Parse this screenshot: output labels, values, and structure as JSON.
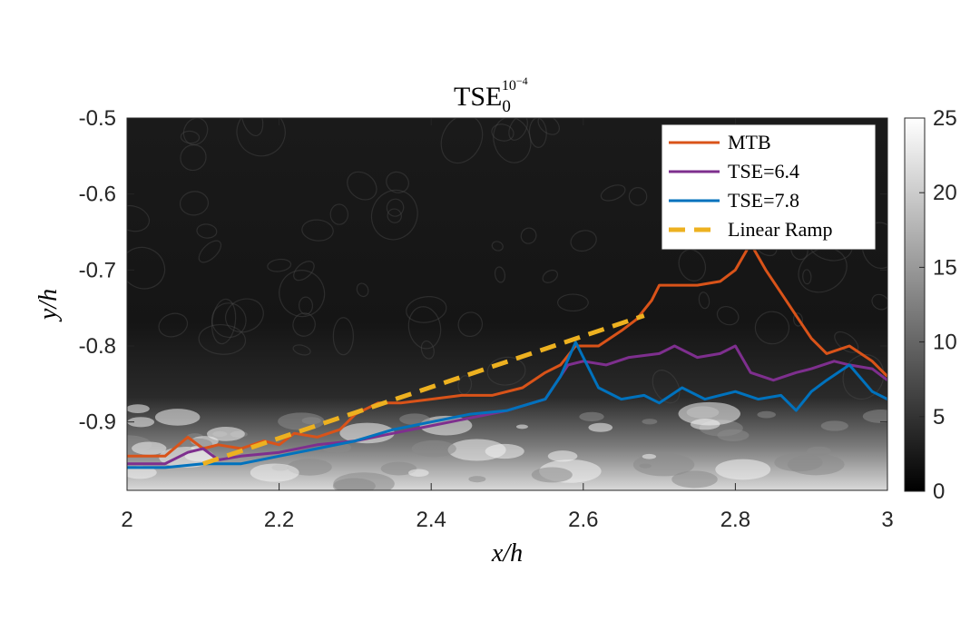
{
  "chart_data": {
    "type": "line",
    "title": "TSE",
    "title_sub": "0",
    "title_sup": "10",
    "title_sup_exp": "−4",
    "xlabel": "x/h",
    "ylabel": "y/h",
    "xlim": [
      2,
      3
    ],
    "ylim": [
      -0.99,
      -0.5
    ],
    "x_ticks": [
      2,
      2.2,
      2.4,
      2.6,
      2.8,
      3
    ],
    "x_tick_labels": [
      "2",
      "2.2",
      "2.4",
      "2.6",
      "2.8",
      "3"
    ],
    "y_ticks": [
      -0.5,
      -0.6,
      -0.7,
      -0.8,
      -0.9
    ],
    "y_tick_labels": [
      "-0.5",
      "-0.6",
      "-0.7",
      "-0.8",
      "-0.9"
    ],
    "colorbar": {
      "range": [
        0,
        25
      ],
      "ticks": [
        0,
        5,
        10,
        15,
        20,
        25
      ],
      "tick_labels": [
        "0",
        "5",
        "10",
        "15",
        "20",
        "25"
      ],
      "colormap": "gray"
    },
    "legend_position": "top-right",
    "grid": false,
    "series": [
      {
        "name": "MTB",
        "color": "#d95319",
        "dash": false,
        "x": [
          2.0,
          2.05,
          2.08,
          2.1,
          2.12,
          2.15,
          2.18,
          2.2,
          2.22,
          2.25,
          2.28,
          2.3,
          2.33,
          2.36,
          2.4,
          2.44,
          2.48,
          2.52,
          2.55,
          2.57,
          2.59,
          2.62,
          2.65,
          2.67,
          2.69,
          2.7,
          2.72,
          2.75,
          2.78,
          2.8,
          2.82,
          2.84,
          2.86,
          2.88,
          2.9,
          2.92,
          2.95,
          2.98,
          3.0
        ],
        "y": [
          -0.945,
          -0.945,
          -0.92,
          -0.935,
          -0.93,
          -0.935,
          -0.925,
          -0.93,
          -0.915,
          -0.92,
          -0.91,
          -0.89,
          -0.875,
          -0.875,
          -0.87,
          -0.865,
          -0.865,
          -0.855,
          -0.835,
          -0.825,
          -0.8,
          -0.8,
          -0.78,
          -0.765,
          -0.74,
          -0.72,
          -0.72,
          -0.72,
          -0.715,
          -0.7,
          -0.665,
          -0.7,
          -0.73,
          -0.76,
          -0.79,
          -0.81,
          -0.8,
          -0.82,
          -0.84
        ]
      },
      {
        "name": "TSE=6.4",
        "color": "#7e2f8e",
        "dash": false,
        "x": [
          2.0,
          2.05,
          2.08,
          2.1,
          2.12,
          2.15,
          2.2,
          2.25,
          2.3,
          2.35,
          2.4,
          2.45,
          2.5,
          2.55,
          2.58,
          2.6,
          2.63,
          2.66,
          2.7,
          2.72,
          2.75,
          2.78,
          2.8,
          2.82,
          2.85,
          2.88,
          2.9,
          2.93,
          2.95,
          2.98,
          3.0
        ],
        "y": [
          -0.955,
          -0.955,
          -0.94,
          -0.935,
          -0.95,
          -0.945,
          -0.94,
          -0.93,
          -0.925,
          -0.915,
          -0.905,
          -0.895,
          -0.885,
          -0.87,
          -0.825,
          -0.82,
          -0.825,
          -0.815,
          -0.81,
          -0.8,
          -0.815,
          -0.81,
          -0.8,
          -0.835,
          -0.845,
          -0.835,
          -0.83,
          -0.82,
          -0.825,
          -0.83,
          -0.845
        ]
      },
      {
        "name": "TSE=7.8",
        "color": "#0072bd",
        "dash": false,
        "x": [
          2.0,
          2.05,
          2.1,
          2.15,
          2.2,
          2.25,
          2.3,
          2.35,
          2.4,
          2.45,
          2.5,
          2.55,
          2.57,
          2.59,
          2.62,
          2.65,
          2.68,
          2.7,
          2.73,
          2.76,
          2.8,
          2.83,
          2.86,
          2.88,
          2.9,
          2.92,
          2.95,
          2.98,
          3.0
        ],
        "y": [
          -0.96,
          -0.96,
          -0.955,
          -0.955,
          -0.945,
          -0.935,
          -0.925,
          -0.91,
          -0.9,
          -0.89,
          -0.885,
          -0.87,
          -0.84,
          -0.795,
          -0.855,
          -0.87,
          -0.865,
          -0.875,
          -0.855,
          -0.87,
          -0.86,
          -0.87,
          -0.865,
          -0.885,
          -0.86,
          -0.845,
          -0.825,
          -0.86,
          -0.87
        ]
      },
      {
        "name": "Linear Ramp",
        "color": "#edb120",
        "dash": true,
        "x": [
          2.1,
          2.68
        ],
        "y": [
          -0.955,
          -0.76
        ]
      }
    ]
  }
}
